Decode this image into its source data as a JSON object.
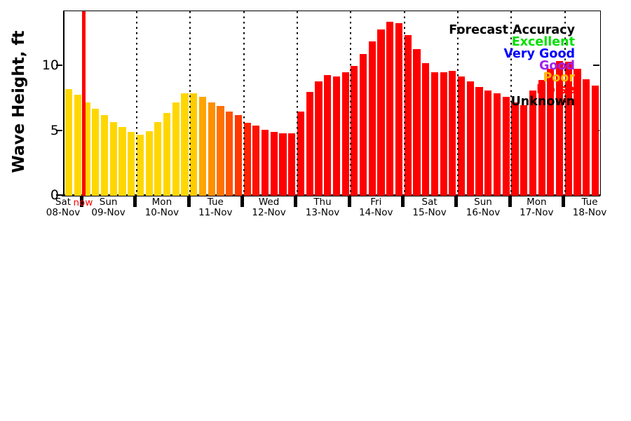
{
  "chart_data": {
    "type": "bar",
    "title": "",
    "ylabel": "Wave Height, ft",
    "yticks": [
      "0",
      "5",
      "10"
    ],
    "ylim": [
      0,
      14.2
    ],
    "grid": "vertical dotted lines at day boundaries",
    "legend_position": "top-right",
    "bars_per_full_day": 6,
    "now_bar_index": 2,
    "days": [
      {
        "weekday": "Sat",
        "date": "08-Nov"
      },
      {
        "weekday": "Sun",
        "date": "09-Nov"
      },
      {
        "weekday": "Mon",
        "date": "10-Nov"
      },
      {
        "weekday": "Tue",
        "date": "11-Nov"
      },
      {
        "weekday": "Wed",
        "date": "12-Nov"
      },
      {
        "weekday": "Thu",
        "date": "13-Nov"
      },
      {
        "weekday": "Fri",
        "date": "14-Nov"
      },
      {
        "weekday": "Sat",
        "date": "15-Nov"
      },
      {
        "weekday": "Sun",
        "date": "16-Nov"
      },
      {
        "weekday": "Mon",
        "date": "17-Nov"
      },
      {
        "weekday": "Tue",
        "date": "18-Nov"
      }
    ],
    "values": [
      8.2,
      7.8,
      7.2,
      6.7,
      6.2,
      5.7,
      5.3,
      4.9,
      4.7,
      5.0,
      5.7,
      6.4,
      7.2,
      7.9,
      7.9,
      7.6,
      7.2,
      6.9,
      6.5,
      6.2,
      5.6,
      5.4,
      5.1,
      4.9,
      4.8,
      4.8,
      6.5,
      8.0,
      8.8,
      9.3,
      9.2,
      9.5,
      10.0,
      10.9,
      11.9,
      12.8,
      13.4,
      13.3,
      12.4,
      11.3,
      10.2,
      9.5,
      9.5,
      9.6,
      9.2,
      8.8,
      8.4,
      8.1,
      7.9,
      7.6,
      7.2,
      7.0,
      8.1,
      8.9,
      9.8,
      10.4,
      10.3,
      9.8,
      9.0,
      8.5
    ],
    "colors": [
      "#FFD700",
      "#FFD700",
      "#FFD700",
      "#FFD700",
      "#FFD700",
      "#FFD700",
      "#FFD700",
      "#FFD700",
      "#FFD700",
      "#FFD700",
      "#FFD700",
      "#FFD700",
      "#FFD700",
      "#FFD700",
      "#FFCC00",
      "#FFA500",
      "#FF9000",
      "#FF7300",
      "#FF5500",
      "#FF3700",
      "#FF2200",
      "#FF1100",
      "#FF0000",
      "#FF0000",
      "#FF0000",
      "#FF0000",
      "#FF0000",
      "#FF0000",
      "#FF0000",
      "#FF0000",
      "#FF0000",
      "#FF0000",
      "#FF0000",
      "#FF0000",
      "#FF0000",
      "#FF0000",
      "#FF0000",
      "#FF0000",
      "#FF0000",
      "#FF0000",
      "#FF0000",
      "#FF0000",
      "#FF0000",
      "#FF0000",
      "#FF0000",
      "#FF0000",
      "#FF0000",
      "#FF0000",
      "#FF0000",
      "#FF0000",
      "#FF0000",
      "#FF0000",
      "#FF0000",
      "#FF0000",
      "#FF0000",
      "#FF0000",
      "#FF0000",
      "#FF0000",
      "#FF0000",
      "#FF0000"
    ]
  },
  "now_marker": {
    "label": "now",
    "color": "#ff0000"
  },
  "legend": {
    "title": {
      "label": "Forecast Accuracy",
      "color": "#000000"
    },
    "entries": [
      {
        "label": "Excellent",
        "color": "#00DF00"
      },
      {
        "label": "Very Good",
        "color": "#0000FF"
      },
      {
        "label": "Good",
        "color": "#A020F0"
      },
      {
        "label": "Poor",
        "color": "#FFB900"
      },
      {
        "label": "Noise",
        "color": "#FF0000"
      },
      {
        "label": "Unknown",
        "color": "#000000"
      }
    ]
  }
}
